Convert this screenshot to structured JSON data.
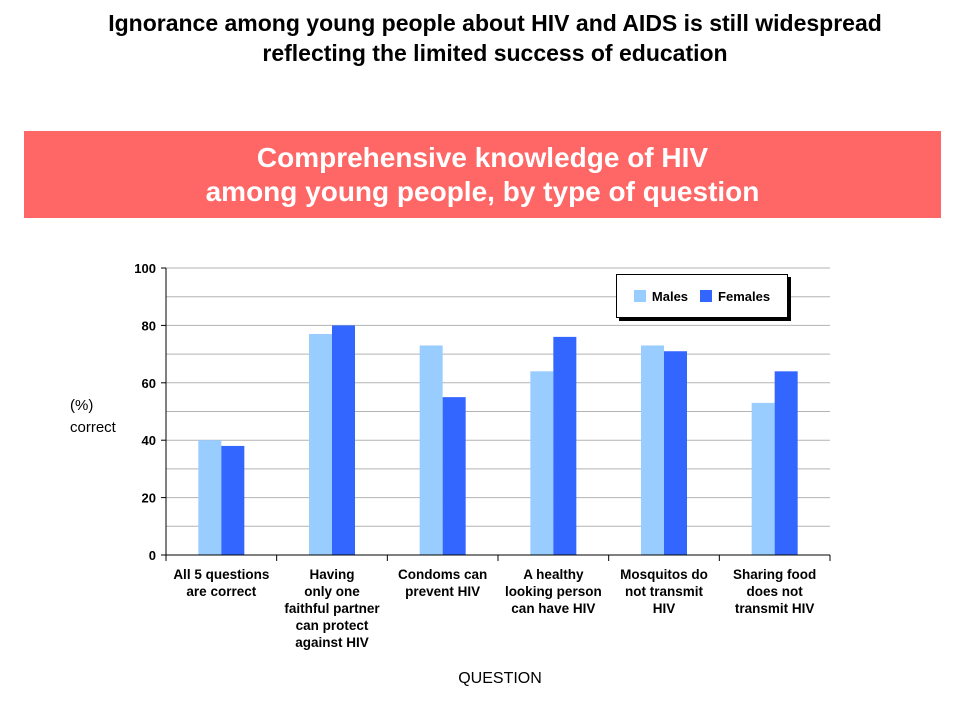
{
  "slide": {
    "title_lines": [
      "Ignorance among young people about HIV and AIDS is still widespread",
      "reflecting the limited success of education"
    ],
    "banner_lines": [
      "Comprehensive knowledge of HIV",
      "among young people, by type of question"
    ]
  },
  "colors": {
    "banner": "#ff6666",
    "males": "#99ccff",
    "females": "#3366ff",
    "grid": "#b3b3b3"
  },
  "chart_data": {
    "type": "bar",
    "title": "",
    "xlabel": "QUESTION",
    "ylabel_lines": [
      "(%)",
      "correct"
    ],
    "ylim": [
      0,
      100
    ],
    "yticks": [
      0,
      20,
      40,
      60,
      80,
      100
    ],
    "grid": true,
    "legend_position": "top-right",
    "categories": [
      "All 5 questions\nare correct",
      "Having\nonly one\nfaithful partner\ncan protect\nagainst HIV",
      "Condoms can\nprevent HIV",
      "A healthy\nlooking person\ncan have HIV",
      "Mosquitos do\nnot transmit\nHIV",
      "Sharing food\ndoes not\ntransmit HIV"
    ],
    "series": [
      {
        "name": "Males",
        "values": [
          40,
          77,
          73,
          64,
          73,
          53
        ]
      },
      {
        "name": "Females",
        "values": [
          38,
          80,
          55,
          76,
          71,
          64
        ]
      }
    ]
  }
}
